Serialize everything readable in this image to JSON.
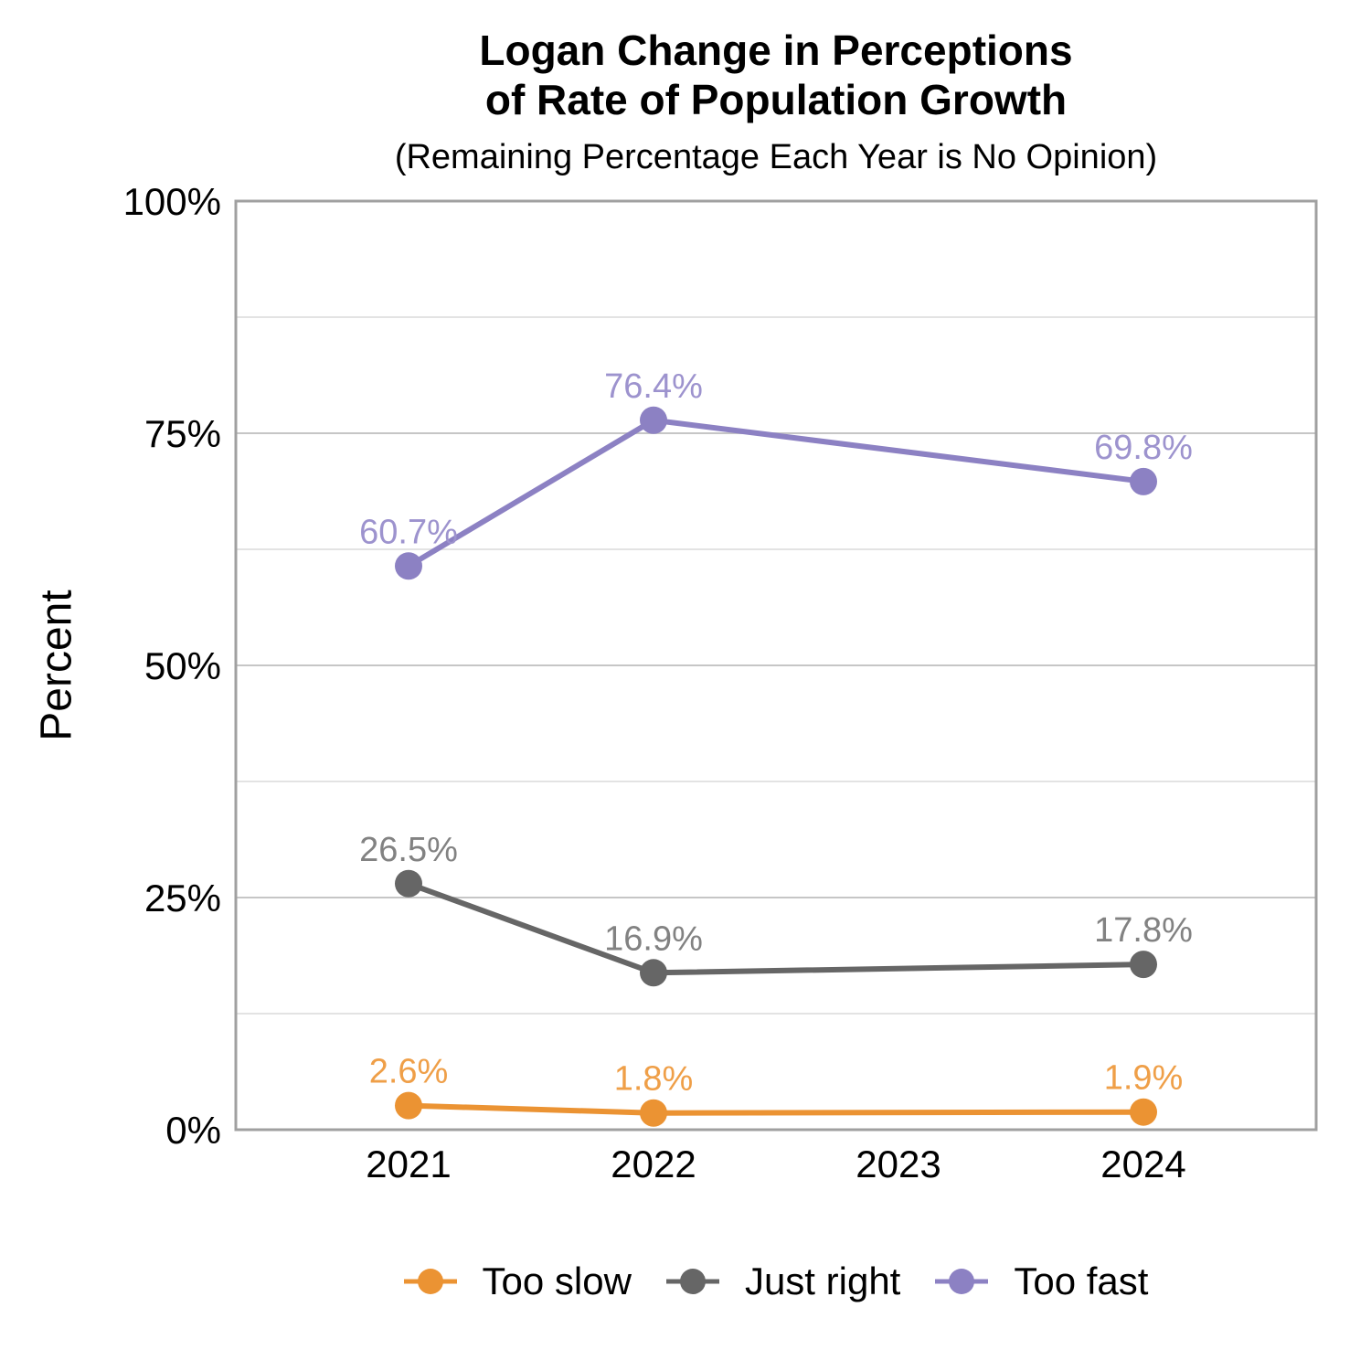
{
  "header": {
    "title_line1": "Logan Change in Perceptions",
    "title_line2": "of Rate of Population Growth",
    "subtitle": "(Remaining Percentage Each Year is No Opinion)"
  },
  "chart_data": {
    "type": "line",
    "title": "Logan Change in Perceptions of Rate of Population Growth",
    "subtitle": "(Remaining Percentage Each Year is No Opinion)",
    "xlabel": "",
    "ylabel": "Percent",
    "ylim": [
      0,
      100
    ],
    "grid": true,
    "legend_position": "bottom",
    "categories": [
      "2021",
      "2022",
      "2023",
      "2024"
    ],
    "y_ticks_major": [
      {
        "value": 0,
        "label": "0%"
      },
      {
        "value": 25,
        "label": "25%"
      },
      {
        "value": 50,
        "label": "50%"
      },
      {
        "value": 75,
        "label": "75%"
      },
      {
        "value": 100,
        "label": "100%"
      }
    ],
    "y_ticks_minor": [
      12.5,
      37.5,
      62.5,
      87.5
    ],
    "series": [
      {
        "name": "Too slow",
        "color": "#EB9333",
        "label_color": "#EF9F48",
        "values": [
          2.6,
          1.8,
          null,
          1.9
        ],
        "labels": [
          "2.6%",
          "1.8%",
          null,
          "1.9%"
        ]
      },
      {
        "name": "Just right",
        "color": "#666666",
        "label_color": "#828282",
        "values": [
          26.5,
          16.9,
          null,
          17.8
        ],
        "labels": [
          "26.5%",
          "16.9%",
          null,
          "17.8%"
        ]
      },
      {
        "name": "Too fast",
        "color": "#8C81C3",
        "label_color": "#9D93CE",
        "values": [
          60.7,
          76.4,
          null,
          69.8
        ],
        "labels": [
          "60.7%",
          "76.4%",
          null,
          "69.8%"
        ]
      }
    ]
  },
  "colors": {
    "plot_border": "#A0A0A0",
    "grid_major": "#C6C6C6",
    "grid_minor": "#E3E3E3",
    "text": "#000000"
  }
}
